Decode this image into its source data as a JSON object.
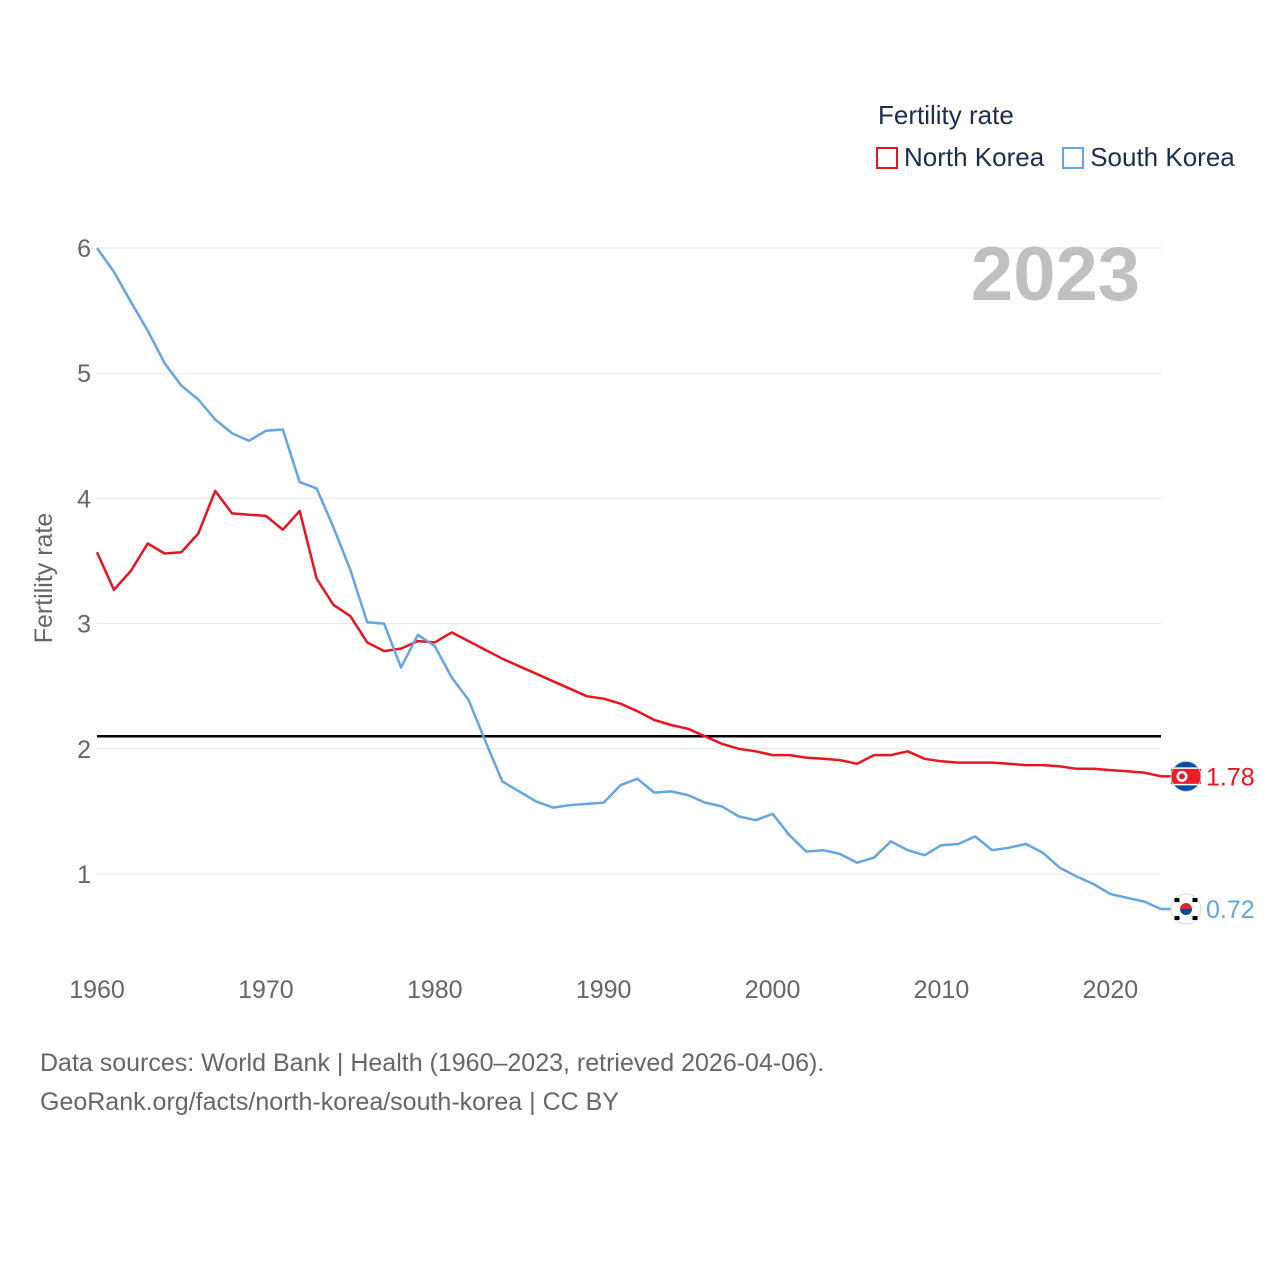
{
  "legend": {
    "title": "Fertility rate",
    "items": [
      {
        "label": "North Korea",
        "color": "#e8141f"
      },
      {
        "label": "South Korea",
        "color": "#63a6e3"
      }
    ]
  },
  "year_watermark": "2023",
  "footer": {
    "line1": "Data sources: World Bank | Health (1960–2023, retrieved 2026-04-06).",
    "line2": "GeoRank.org/facts/north-korea/south-korea | CC BY"
  },
  "chart_data": {
    "type": "line",
    "title": "Fertility rate",
    "xlabel": "",
    "ylabel": "Fertility rate",
    "xlim": [
      1960,
      2023
    ],
    "ylim": [
      0.5,
      6.1
    ],
    "x_ticks": [
      1960,
      1970,
      1980,
      1990,
      2000,
      2010,
      2020
    ],
    "y_ticks": [
      1,
      2,
      3,
      4,
      5,
      6
    ],
    "reference_line": {
      "y": 2.1,
      "color": "#000000"
    },
    "grid": true,
    "x": [
      1960,
      1961,
      1962,
      1963,
      1964,
      1965,
      1966,
      1967,
      1968,
      1969,
      1970,
      1971,
      1972,
      1973,
      1974,
      1975,
      1976,
      1977,
      1978,
      1979,
      1980,
      1981,
      1982,
      1983,
      1984,
      1985,
      1986,
      1987,
      1988,
      1989,
      1990,
      1991,
      1992,
      1993,
      1994,
      1995,
      1996,
      1997,
      1998,
      1999,
      2000,
      2001,
      2002,
      2003,
      2004,
      2005,
      2006,
      2007,
      2008,
      2009,
      2010,
      2011,
      2012,
      2013,
      2014,
      2015,
      2016,
      2017,
      2018,
      2019,
      2020,
      2021,
      2022,
      2023
    ],
    "series": [
      {
        "name": "North Korea",
        "color": "#e8141f",
        "end_label": "1.78",
        "values": [
          3.57,
          3.27,
          3.42,
          3.64,
          3.56,
          3.57,
          3.72,
          4.06,
          3.88,
          3.87,
          3.86,
          3.75,
          3.9,
          3.36,
          3.15,
          3.06,
          2.85,
          2.78,
          2.8,
          2.86,
          2.85,
          2.93,
          2.86,
          2.79,
          2.72,
          2.66,
          2.6,
          2.54,
          2.48,
          2.42,
          2.4,
          2.36,
          2.3,
          2.23,
          2.19,
          2.16,
          2.1,
          2.04,
          2.0,
          1.98,
          1.95,
          1.95,
          1.93,
          1.92,
          1.91,
          1.88,
          1.95,
          1.95,
          1.98,
          1.92,
          1.9,
          1.89,
          1.89,
          1.89,
          1.88,
          1.87,
          1.87,
          1.86,
          1.84,
          1.84,
          1.83,
          1.82,
          1.81,
          1.78
        ]
      },
      {
        "name": "South Korea",
        "color": "#63a6e3",
        "end_label": "0.72",
        "values": [
          6.0,
          5.81,
          5.57,
          5.34,
          5.08,
          4.9,
          4.79,
          4.63,
          4.52,
          4.46,
          4.54,
          4.55,
          4.13,
          4.08,
          3.77,
          3.43,
          3.01,
          3.0,
          2.65,
          2.91,
          2.82,
          2.57,
          2.39,
          2.06,
          1.74,
          1.66,
          1.58,
          1.53,
          1.55,
          1.56,
          1.57,
          1.71,
          1.76,
          1.65,
          1.66,
          1.63,
          1.57,
          1.54,
          1.46,
          1.43,
          1.48,
          1.31,
          1.18,
          1.19,
          1.16,
          1.09,
          1.13,
          1.26,
          1.19,
          1.15,
          1.23,
          1.24,
          1.3,
          1.19,
          1.21,
          1.24,
          1.17,
          1.05,
          0.98,
          0.92,
          0.84,
          0.81,
          0.78,
          0.72
        ]
      }
    ]
  }
}
